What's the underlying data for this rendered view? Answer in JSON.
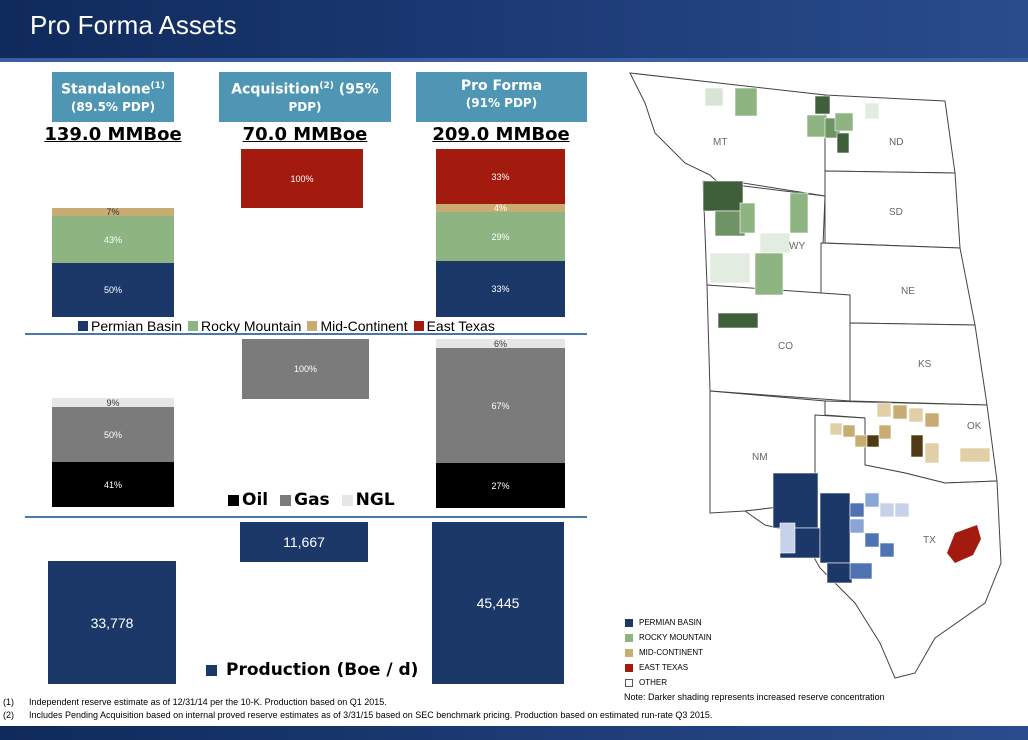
{
  "title": "Pro Forma Assets",
  "columns": [
    {
      "head_line1": "Standalone",
      "sup": "(1)",
      "head_line2": "(89.5% PDP)",
      "total": "139.0 MMBoe"
    },
    {
      "head_line1": "Acquisition",
      "sup": "(2)",
      "head_line1b": " (95%",
      "head_line2": "PDP)",
      "total": "70.0 MMBoe"
    },
    {
      "head_line1": "Pro Forma",
      "sup": "",
      "head_line2": "(91% PDP)",
      "total": "209.0 MMBoe"
    }
  ],
  "reserves_chart": {
    "standalone": {
      "permian": "50%",
      "rocky": "43%",
      "midcon": "7%"
    },
    "acquisition": {
      "east_texas": "100%"
    },
    "pro_forma": {
      "permian": "33%",
      "rocky": "29%",
      "midcon": "4%",
      "east_texas": "33%"
    },
    "legend": [
      "Permian Basin",
      "Rocky Mountain",
      "Mid-Continent",
      "East Texas"
    ]
  },
  "commodity_chart": {
    "standalone": {
      "oil": "41%",
      "gas": "50%",
      "ngl": "9%"
    },
    "acquisition": {
      "gas": "100%"
    },
    "pro_forma": {
      "oil": "27%",
      "gas": "67%",
      "ngl": "6%"
    },
    "legend": [
      "Oil",
      "Gas",
      "NGL"
    ]
  },
  "production_chart": {
    "standalone": "33,778",
    "acquisition": "11,667",
    "pro_forma": "45,445",
    "legend": "Production (Boe / d)"
  },
  "colors": {
    "permian": "#1b3868",
    "rocky": "#8db481",
    "midcon": "#c9ac72",
    "east_texas": "#a31a0f",
    "oil": "#000000",
    "gas": "#7b7b7b",
    "ngl": "#e6e6e6",
    "production": "#1b3868"
  },
  "map": {
    "states": [
      "MT",
      "ND",
      "SD",
      "WY",
      "NE",
      "CO",
      "KS",
      "OK",
      "NM",
      "TX"
    ],
    "legend": [
      "PERMIAN BASIN",
      "ROCKY MOUNTAIN",
      "MID-CONTINENT",
      "EAST TEXAS",
      "OTHER"
    ],
    "note": "Note: Darker shading represents increased reserve concentration"
  },
  "footnotes": [
    {
      "num": "(1)",
      "text": "Independent reserve estimate as of 12/31/14 per the 10-K. Production based on Q1 2015."
    },
    {
      "num": "(2)",
      "text": "Includes Pending Acquisition based on internal proved reserve estimates as of 3/31/15 based on SEC benchmark pricing. Production based on estimated run-rate Q3 2015."
    }
  ]
}
